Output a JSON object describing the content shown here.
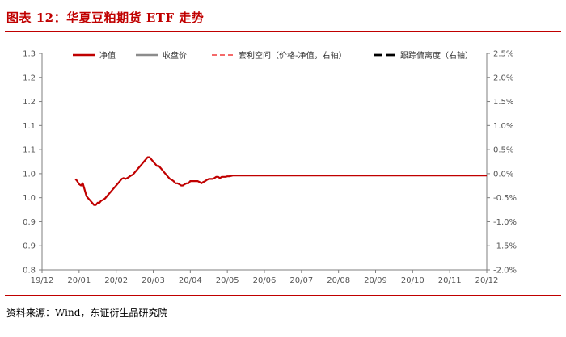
{
  "header": {
    "title": "图表 12：华夏豆粕期货 ETF 走势"
  },
  "footer": {
    "source": "资料来源：Wind，东证衍生品研究院"
  },
  "colors": {
    "accent": "#c00000",
    "nav": "#c00000",
    "close": "#8c8c8c",
    "arbitrage": "#f46a6a",
    "tracking": "#000000"
  },
  "chart_data": {
    "type": "line",
    "x_ticks": [
      "19/12",
      "20/01",
      "20/02",
      "20/03",
      "20/04",
      "20/05",
      "20/06",
      "20/07",
      "20/08",
      "20/09",
      "20/10",
      "20/11",
      "20/12"
    ],
    "y_left": {
      "min": 0.8,
      "max": 1.3,
      "ticks": [
        "0.8",
        "0.9",
        "0.9",
        "1.0",
        "1.0",
        "1.1",
        "1.1",
        "1.2",
        "1.2",
        "1.3"
      ]
    },
    "y_right": {
      "min": -2.0,
      "max": 2.5,
      "ticks": [
        "-2.0%",
        "-1.5%",
        "-1.0%",
        "-0.5%",
        "0.0%",
        "0.5%",
        "1.0%",
        "1.5%",
        "2.0%",
        "2.5%"
      ]
    },
    "legend": {
      "placement": "top",
      "entries": [
        "净值",
        "收盘价",
        "套利空间（价格-净值，右轴）",
        "跟踪偏离度（右轴）"
      ]
    },
    "series": [
      {
        "name": "净值",
        "axis": "left",
        "style": "solid",
        "points": [
          [
            0.9,
            1.01
          ],
          [
            0.95,
            1.005
          ],
          [
            1.0,
            0.998
          ],
          [
            1.05,
            0.995
          ],
          [
            1.1,
            1.0
          ],
          [
            1.15,
            0.985
          ],
          [
            1.2,
            0.97
          ],
          [
            1.25,
            0.965
          ],
          [
            1.3,
            0.96
          ],
          [
            1.35,
            0.955
          ],
          [
            1.4,
            0.95
          ],
          [
            1.45,
            0.95
          ],
          [
            1.5,
            0.955
          ],
          [
            1.55,
            0.955
          ],
          [
            1.6,
            0.96
          ],
          [
            1.65,
            0.962
          ],
          [
            1.7,
            0.965
          ],
          [
            1.75,
            0.97
          ],
          [
            1.8,
            0.975
          ],
          [
            1.85,
            0.98
          ],
          [
            1.9,
            0.985
          ],
          [
            1.95,
            0.99
          ],
          [
            2.0,
            0.995
          ],
          [
            2.05,
            1.0
          ],
          [
            2.1,
            1.005
          ],
          [
            2.15,
            1.01
          ],
          [
            2.2,
            1.012
          ],
          [
            2.25,
            1.01
          ],
          [
            2.3,
            1.012
          ],
          [
            2.35,
            1.015
          ],
          [
            2.4,
            1.018
          ],
          [
            2.45,
            1.02
          ],
          [
            2.5,
            1.025
          ],
          [
            2.55,
            1.03
          ],
          [
            2.6,
            1.035
          ],
          [
            2.65,
            1.04
          ],
          [
            2.7,
            1.045
          ],
          [
            2.75,
            1.05
          ],
          [
            2.8,
            1.055
          ],
          [
            2.85,
            1.06
          ],
          [
            2.9,
            1.06
          ],
          [
            2.95,
            1.055
          ],
          [
            3.0,
            1.05
          ],
          [
            3.05,
            1.045
          ],
          [
            3.1,
            1.04
          ],
          [
            3.15,
            1.04
          ],
          [
            3.2,
            1.035
          ],
          [
            3.25,
            1.03
          ],
          [
            3.3,
            1.025
          ],
          [
            3.35,
            1.02
          ],
          [
            3.4,
            1.015
          ],
          [
            3.45,
            1.01
          ],
          [
            3.5,
            1.008
          ],
          [
            3.55,
            1.005
          ],
          [
            3.6,
            1.0
          ],
          [
            3.65,
            1.0
          ],
          [
            3.7,
            0.998
          ],
          [
            3.75,
            0.995
          ],
          [
            3.8,
            0.995
          ],
          [
            3.85,
            0.998
          ],
          [
            3.9,
            1.0
          ],
          [
            3.95,
            1.0
          ],
          [
            4.0,
            1.005
          ],
          [
            4.05,
            1.005
          ],
          [
            4.1,
            1.005
          ],
          [
            4.15,
            1.005
          ],
          [
            4.2,
            1.005
          ],
          [
            4.25,
            1.003
          ],
          [
            4.3,
            1.0
          ],
          [
            4.35,
            1.003
          ],
          [
            4.4,
            1.005
          ],
          [
            4.45,
            1.008
          ],
          [
            4.5,
            1.01
          ],
          [
            4.55,
            1.01
          ],
          [
            4.6,
            1.01
          ],
          [
            4.65,
            1.012
          ],
          [
            4.7,
            1.015
          ],
          [
            4.75,
            1.015
          ],
          [
            4.8,
            1.012
          ],
          [
            4.85,
            1.015
          ],
          [
            4.9,
            1.015
          ],
          [
            4.95,
            1.015
          ],
          [
            5.0,
            1.016
          ],
          [
            5.05,
            1.016
          ],
          [
            5.1,
            1.017
          ],
          [
            5.15,
            1.018
          ],
          [
            5.2,
            1.018
          ],
          [
            5.25,
            1.018
          ],
          [
            5.3,
            1.018
          ],
          [
            5.35,
            1.018
          ],
          [
            5.4,
            1.018
          ],
          [
            5.45,
            1.018
          ],
          [
            5.5,
            1.018
          ],
          [
            5.55,
            1.018
          ],
          [
            5.6,
            1.018
          ],
          [
            5.65,
            1.018
          ],
          [
            5.7,
            1.018
          ],
          [
            5.75,
            1.018
          ],
          [
            5.8,
            1.018
          ],
          [
            5.85,
            1.018
          ],
          [
            5.9,
            1.018
          ],
          [
            5.95,
            1.018
          ],
          [
            6.0,
            1.018
          ],
          [
            6.05,
            1.018
          ],
          [
            6.1,
            1.018
          ],
          [
            6.15,
            1.018
          ],
          [
            6.2,
            1.018
          ],
          [
            6.25,
            1.018
          ],
          [
            6.3,
            1.018
          ],
          [
            6.35,
            1.018
          ],
          [
            6.4,
            1.018
          ],
          [
            6.45,
            1.018
          ],
          [
            6.5,
            1.018
          ],
          [
            6.55,
            1.018
          ],
          [
            6.6,
            1.018
          ],
          [
            6.65,
            1.018
          ],
          [
            6.7,
            1.018
          ],
          [
            6.75,
            1.018
          ],
          [
            6.8,
            1.018
          ],
          [
            6.85,
            1.018
          ],
          [
            6.9,
            1.018
          ],
          [
            6.95,
            1.018
          ],
          [
            7.0,
            1.018
          ],
          [
            7.05,
            1.018
          ],
          [
            7.1,
            1.018
          ],
          [
            7.15,
            1.018
          ],
          [
            7.2,
            1.018
          ],
          [
            7.25,
            1.018
          ],
          [
            7.3,
            1.018
          ],
          [
            7.35,
            1.018
          ],
          [
            7.4,
            1.018
          ],
          [
            7.45,
            1.018
          ],
          [
            7.5,
            1.018
          ],
          [
            7.55,
            1.018
          ],
          [
            7.6,
            1.018
          ],
          [
            7.65,
            1.018
          ],
          [
            7.7,
            1.018
          ],
          [
            7.75,
            1.018
          ],
          [
            7.8,
            1.018
          ],
          [
            7.85,
            1.018
          ],
          [
            7.9,
            1.018
          ],
          [
            7.95,
            1.018
          ],
          [
            8.0,
            1.018
          ],
          [
            8.05,
            1.018
          ],
          [
            8.1,
            1.018
          ],
          [
            8.15,
            1.018
          ],
          [
            8.2,
            1.018
          ],
          [
            8.25,
            1.018
          ],
          [
            8.3,
            1.018
          ],
          [
            8.35,
            1.018
          ],
          [
            8.4,
            1.018
          ],
          [
            8.45,
            1.018
          ],
          [
            8.5,
            1.018
          ],
          [
            8.55,
            1.018
          ],
          [
            8.6,
            1.018
          ],
          [
            8.65,
            1.018
          ],
          [
            8.7,
            1.018
          ],
          [
            8.75,
            1.018
          ],
          [
            8.8,
            1.018
          ],
          [
            8.85,
            1.018
          ],
          [
            8.9,
            1.018
          ],
          [
            8.95,
            1.018
          ],
          [
            9.0,
            1.018
          ],
          [
            9.05,
            1.018
          ],
          [
            9.1,
            1.018
          ],
          [
            9.15,
            1.018
          ],
          [
            9.2,
            1.018
          ],
          [
            9.25,
            1.018
          ],
          [
            9.3,
            1.018
          ],
          [
            9.35,
            1.018
          ],
          [
            9.4,
            1.018
          ],
          [
            9.45,
            1.018
          ],
          [
            9.5,
            1.018
          ],
          [
            9.55,
            1.018
          ],
          [
            9.6,
            1.018
          ],
          [
            9.65,
            1.018
          ],
          [
            9.7,
            1.018
          ],
          [
            9.75,
            1.018
          ],
          [
            9.8,
            1.018
          ],
          [
            9.85,
            1.018
          ],
          [
            9.9,
            1.018
          ],
          [
            9.95,
            1.018
          ],
          [
            10.0,
            1.018
          ],
          [
            10.05,
            1.018
          ],
          [
            10.1,
            1.018
          ],
          [
            10.15,
            1.018
          ],
          [
            10.2,
            1.018
          ],
          [
            10.25,
            1.018
          ],
          [
            10.3,
            1.018
          ],
          [
            10.35,
            1.018
          ],
          [
            10.4,
            1.018
          ],
          [
            10.45,
            1.018
          ],
          [
            10.5,
            1.018
          ],
          [
            10.55,
            1.018
          ],
          [
            10.6,
            1.018
          ],
          [
            10.65,
            1.018
          ],
          [
            10.7,
            1.018
          ],
          [
            10.75,
            1.018
          ],
          [
            10.8,
            1.018
          ],
          [
            10.85,
            1.018
          ],
          [
            10.9,
            1.018
          ],
          [
            10.95,
            1.018
          ],
          [
            11.0,
            1.018
          ],
          [
            11.05,
            1.018
          ],
          [
            11.1,
            1.018
          ],
          [
            11.15,
            1.018
          ],
          [
            11.2,
            1.018
          ],
          [
            11.25,
            1.018
          ],
          [
            11.3,
            1.018
          ],
          [
            11.35,
            1.018
          ],
          [
            11.4,
            1.018
          ],
          [
            11.45,
            1.018
          ],
          [
            11.5,
            1.018
          ],
          [
            11.55,
            1.018
          ],
          [
            11.6,
            1.018
          ],
          [
            11.65,
            1.018
          ],
          [
            11.7,
            1.018
          ],
          [
            11.75,
            1.018
          ],
          [
            11.8,
            1.018
          ],
          [
            11.85,
            1.018
          ],
          [
            11.9,
            1.018
          ],
          [
            11.95,
            1.018
          ],
          [
            12.0,
            1.018
          ]
        ]
      }
    ]
  }
}
